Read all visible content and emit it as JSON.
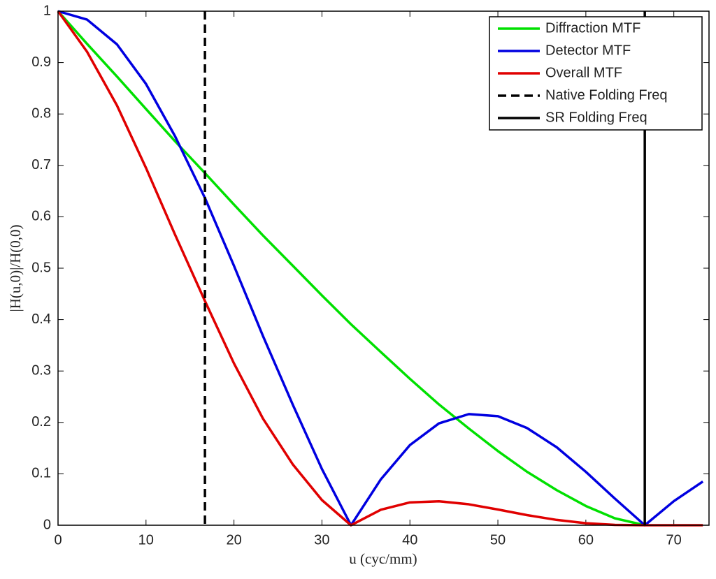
{
  "chart_data": {
    "type": "line",
    "xlabel": "u (cyc/mm)",
    "ylabel": "|H(u,0)|/H(0,0)",
    "x": [
      0,
      3.3,
      6.7,
      10,
      13.3,
      16.7,
      20,
      23.3,
      26.7,
      30,
      33.3,
      36.7,
      40,
      43.3,
      46.7,
      50,
      53.3,
      56.7,
      60,
      63.3,
      66.7,
      70,
      73.3
    ],
    "series": [
      {
        "name": "Diffraction MTF",
        "color": "#00e000",
        "values": [
          1,
          0.9364,
          0.8729,
          0.8097,
          0.747,
          0.685,
          0.6238,
          0.5636,
          0.5046,
          0.447,
          0.391,
          0.3368,
          0.2848,
          0.235,
          0.1881,
          0.1443,
          0.1041,
          0.0681,
          0.0374,
          0.0134,
          0,
          null,
          null
        ]
      },
      {
        "name": "Detector MTF",
        "color": "#0000e0",
        "values": [
          1,
          0.9836,
          0.9355,
          0.8584,
          0.7568,
          0.6366,
          0.5046,
          0.3679,
          0.2339,
          0.1093,
          0,
          0.0894,
          0.1559,
          0.1981,
          0.2162,
          0.2122,
          0.1892,
          0.1515,
          0.1039,
          0.0518,
          0,
          0.0468,
          0.085
        ]
      },
      {
        "name": "Overall MTF",
        "color": "#e00000",
        "values": [
          1,
          0.921,
          0.8166,
          0.695,
          0.5653,
          0.4361,
          0.3148,
          0.2073,
          0.118,
          0.0489,
          0,
          0.0301,
          0.0444,
          0.0466,
          0.0407,
          0.0306,
          0.0197,
          0.0103,
          0.0039,
          0.0007,
          0,
          0,
          0
        ]
      }
    ],
    "vlines": [
      {
        "name": "Native Folding Freq",
        "color": "#000000",
        "dashed": true,
        "x": 16.7
      },
      {
        "name": "SR Folding Freq",
        "color": "#000000",
        "dashed": false,
        "x": 66.7
      }
    ],
    "xlim": [
      0,
      74
    ],
    "ylim": [
      0,
      1
    ],
    "xticks": [
      0,
      10,
      20,
      30,
      40,
      50,
      60,
      70
    ],
    "yticks": [
      0,
      0.1,
      0.2,
      0.3,
      0.4,
      0.5,
      0.6,
      0.7,
      0.8,
      0.9,
      1
    ],
    "legend": "top-right"
  }
}
